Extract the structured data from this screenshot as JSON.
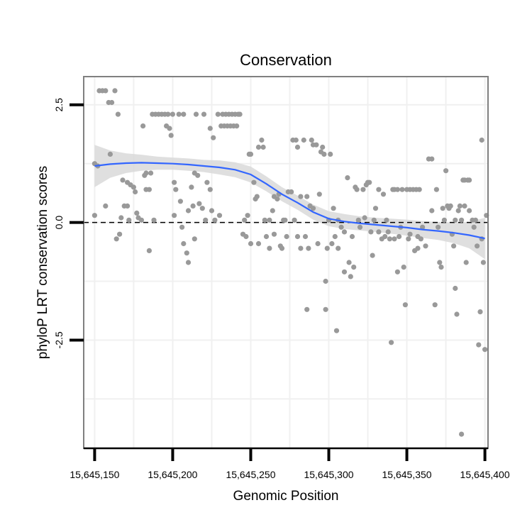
{
  "chart_data": {
    "type": "scatter",
    "title": "Conservation",
    "xlabel": "Genomic Position",
    "ylabel": "phyloP LRT conservation scores",
    "xlim": [
      15645143,
      15645402
    ],
    "ylim": [
      -4.8,
      3.1
    ],
    "x_ticks": [
      15645150,
      15645200,
      15645250,
      15645300,
      15645350,
      15645400
    ],
    "x_tick_labels": [
      "15,645,150",
      "15,645,200",
      "15,645,250",
      "15,645,300",
      "15,645,350",
      "15,645,400"
    ],
    "y_ticks": [
      2.5,
      0.0,
      -2.5
    ],
    "y_tick_labels": [
      "2.5",
      "0.0",
      "-2.5"
    ],
    "reference_line": {
      "y": 0,
      "style": "dashed"
    },
    "points": [
      [
        15645150,
        1.25
      ],
      [
        15645152,
        1.2
      ],
      [
        15645150,
        0.15
      ],
      [
        15645153,
        2.8
      ],
      [
        15645155,
        2.8
      ],
      [
        15645157,
        2.8
      ],
      [
        15645159,
        2.55
      ],
      [
        15645161,
        2.55
      ],
      [
        15645163,
        2.8
      ],
      [
        15645165,
        2.3
      ],
      [
        15645157,
        0.35
      ],
      [
        15645160,
        1.45
      ],
      [
        15645164,
        -0.35
      ],
      [
        15645166,
        -0.25
      ],
      [
        15645167,
        0.1
      ],
      [
        15645168,
        0.9
      ],
      [
        15645169,
        0.35
      ],
      [
        15645171,
        0.35
      ],
      [
        15645171,
        0.85
      ],
      [
        15645173,
        0.8
      ],
      [
        15645172,
        0.05
      ],
      [
        15645175,
        0.75
      ],
      [
        15645176,
        0.65
      ],
      [
        15645177,
        0.2
      ],
      [
        15645178,
        0.1
      ],
      [
        15645180,
        0.05
      ],
      [
        15645181,
        2.05
      ],
      [
        15645182,
        1.0
      ],
      [
        15645183,
        1.05
      ],
      [
        15645183,
        0.7
      ],
      [
        15645185,
        0.7
      ],
      [
        15645185,
        -0.6
      ],
      [
        15645186,
        1.05
      ],
      [
        15645188,
        0.05
      ],
      [
        15645187,
        2.3
      ],
      [
        15645189,
        2.3
      ],
      [
        15645191,
        2.3
      ],
      [
        15645193,
        2.3
      ],
      [
        15645195,
        2.3
      ],
      [
        15645196,
        2.05
      ],
      [
        15645197,
        2.3
      ],
      [
        15645198,
        2.0
      ],
      [
        15645199,
        1.85
      ],
      [
        15645200,
        2.3
      ],
      [
        15645201,
        0.15
      ],
      [
        15645201,
        0.85
      ],
      [
        15645202,
        0.7
      ],
      [
        15645204,
        2.3
      ],
      [
        15645205,
        0.45
      ],
      [
        15645206,
        -0.1
      ],
      [
        15645207,
        2.3
      ],
      [
        15645207,
        -0.45
      ],
      [
        15645209,
        -0.65
      ],
      [
        15645210,
        -0.85
      ],
      [
        15645210,
        0.25
      ],
      [
        15645212,
        0.75
      ],
      [
        15645213,
        0.35
      ],
      [
        15645214,
        1.05
      ],
      [
        15645214,
        -0.35
      ],
      [
        15645215,
        2.3
      ],
      [
        15645216,
        1.0
      ],
      [
        15645217,
        0.4
      ],
      [
        15645219,
        0.3
      ],
      [
        15645220,
        2.3
      ],
      [
        15645221,
        0.05
      ],
      [
        15645222,
        0.85
      ],
      [
        15645224,
        0.7
      ],
      [
        15645225,
        0.25
      ],
      [
        15645224,
        2.0
      ],
      [
        15645226,
        1.8
      ],
      [
        15645227,
        0.05
      ],
      [
        15645229,
        2.3
      ],
      [
        15645230,
        0.15
      ],
      [
        15645231,
        2.05
      ],
      [
        15645232,
        2.3
      ],
      [
        15645233,
        2.05
      ],
      [
        15645234,
        2.3
      ],
      [
        15645235,
        2.05
      ],
      [
        15645236,
        2.3
      ],
      [
        15645237,
        2.05
      ],
      [
        15645238,
        2.3
      ],
      [
        15645239,
        2.05
      ],
      [
        15645240,
        2.3
      ],
      [
        15645241,
        2.05
      ],
      [
        15645242,
        2.3
      ],
      [
        15645243,
        2.3
      ],
      [
        15645245,
        -0.25
      ],
      [
        15645246,
        0.05
      ],
      [
        15645247,
        -0.3
      ],
      [
        15645248,
        0.15
      ],
      [
        15645249,
        1.45
      ],
      [
        15645250,
        1.45
      ],
      [
        15645250,
        -0.45
      ],
      [
        15645252,
        0.85
      ],
      [
        15645253,
        0.5
      ],
      [
        15645254,
        0.55
      ],
      [
        15645255,
        -0.45
      ],
      [
        15645255,
        1.6
      ],
      [
        15645257,
        1.75
      ],
      [
        15645258,
        1.6
      ],
      [
        15645259,
        0.05
      ],
      [
        15645260,
        -0.3
      ],
      [
        15645262,
        0.05
      ],
      [
        15645262,
        -0.55
      ],
      [
        15645264,
        0.25
      ],
      [
        15645265,
        0.55
      ],
      [
        15645265,
        -0.25
      ],
      [
        15645267,
        0.5
      ],
      [
        15645268,
        0.6
      ],
      [
        15645269,
        -0.5
      ],
      [
        15645270,
        -0.55
      ],
      [
        15645271,
        0.05
      ],
      [
        15645272,
        0.05
      ],
      [
        15645273,
        -0.3
      ],
      [
        15645274,
        0.65
      ],
      [
        15645276,
        0.65
      ],
      [
        15645277,
        1.75
      ],
      [
        15645278,
        0.05
      ],
      [
        15645279,
        1.75
      ],
      [
        15645280,
        1.6
      ],
      [
        15645280,
        -0.3
      ],
      [
        15645282,
        0.55
      ],
      [
        15645282,
        -0.55
      ],
      [
        15645284,
        1.75
      ],
      [
        15645285,
        -0.3
      ],
      [
        15645286,
        -1.85
      ],
      [
        15645286,
        0.55
      ],
      [
        15645287,
        -0.55
      ],
      [
        15645288,
        0.35
      ],
      [
        15645289,
        1.75
      ],
      [
        15645290,
        1.65
      ],
      [
        15645290,
        0.3
      ],
      [
        15645292,
        1.65
      ],
      [
        15645293,
        -0.45
      ],
      [
        15645294,
        0.6
      ],
      [
        15645295,
        1.5
      ],
      [
        15645296,
        1.6
      ],
      [
        15645297,
        1.45
      ],
      [
        15645298,
        -1.25
      ],
      [
        15645298,
        -1.85
      ],
      [
        15645299,
        -0.55
      ],
      [
        15645300,
        0.05
      ],
      [
        15645301,
        1.45
      ],
      [
        15645302,
        -0.45
      ],
      [
        15645303,
        0.3
      ],
      [
        15645304,
        -0.3
      ],
      [
        15645305,
        -2.3
      ],
      [
        15645306,
        0.05
      ],
      [
        15645306,
        -0.55
      ],
      [
        15645308,
        -0.1
      ],
      [
        15645310,
        -1.05
      ],
      [
        15645310,
        -0.2
      ],
      [
        15645312,
        0.95
      ],
      [
        15645313,
        -0.85
      ],
      [
        15645314,
        -1.15
      ],
      [
        15645315,
        -0.3
      ],
      [
        15645316,
        -0.95
      ],
      [
        15645317,
        0.75
      ],
      [
        15645318,
        0.7
      ],
      [
        15645319,
        0.05
      ],
      [
        15645320,
        -0.1
      ],
      [
        15645322,
        0.7
      ],
      [
        15645323,
        0.1
      ],
      [
        15645324,
        0.8
      ],
      [
        15645325,
        0.85
      ],
      [
        15645326,
        0.85
      ],
      [
        15645327,
        -0.2
      ],
      [
        15645328,
        -0.7
      ],
      [
        15645329,
        0.05
      ],
      [
        15645330,
        0.3
      ],
      [
        15645332,
        0.7
      ],
      [
        15645332,
        -0.2
      ],
      [
        15645334,
        -0.35
      ],
      [
        15645335,
        0.6
      ],
      [
        15645336,
        -0.3
      ],
      [
        15645337,
        0.05
      ],
      [
        15645338,
        -0.2
      ],
      [
        15645339,
        -0.35
      ],
      [
        15645340,
        -2.55
      ],
      [
        15645341,
        0.7
      ],
      [
        15645342,
        0.7
      ],
      [
        15645342,
        -0.35
      ],
      [
        15645344,
        0.7
      ],
      [
        15645344,
        -1.05
      ],
      [
        15645345,
        -0.3
      ],
      [
        15645346,
        -0.1
      ],
      [
        15645347,
        0.7
      ],
      [
        15645348,
        -0.95
      ],
      [
        15645349,
        -1.75
      ],
      [
        15645350,
        0.7
      ],
      [
        15645351,
        -0.35
      ],
      [
        15645352,
        0.7
      ],
      [
        15645352,
        -0.25
      ],
      [
        15645354,
        0.7
      ],
      [
        15645355,
        -0.6
      ],
      [
        15645356,
        0.7
      ],
      [
        15645357,
        -0.3
      ],
      [
        15645357,
        -0.55
      ],
      [
        15645358,
        0.7
      ],
      [
        15645359,
        -0.35
      ],
      [
        15645360,
        -0.1
      ],
      [
        15645362,
        -0.5
      ],
      [
        15645364,
        1.35
      ],
      [
        15645366,
        1.35
      ],
      [
        15645366,
        0.25
      ],
      [
        15645368,
        -1.75
      ],
      [
        15645369,
        0.7
      ],
      [
        15645370,
        -0.1
      ],
      [
        15645371,
        -0.85
      ],
      [
        15645372,
        -0.95
      ],
      [
        15645373,
        0.3
      ],
      [
        15645374,
        0.05
      ],
      [
        15645375,
        1.1
      ],
      [
        15645376,
        0.35
      ],
      [
        15645377,
        0.3
      ],
      [
        15645378,
        0.35
      ],
      [
        15645379,
        -0.25
      ],
      [
        15645380,
        -0.5
      ],
      [
        15645381,
        -1.4
      ],
      [
        15645381,
        0.05
      ],
      [
        15645382,
        -1.95
      ],
      [
        15645383,
        0.25
      ],
      [
        15645384,
        0.35
      ],
      [
        15645385,
        -4.5
      ],
      [
        15645385,
        0.05
      ],
      [
        15645386,
        0.9
      ],
      [
        15645387,
        0.9
      ],
      [
        15645387,
        0.35
      ],
      [
        15645388,
        -0.85
      ],
      [
        15645389,
        0.9
      ],
      [
        15645390,
        0.9
      ],
      [
        15645390,
        0.25
      ],
      [
        15645392,
        0.05
      ],
      [
        15645393,
        -0.1
      ],
      [
        15645394,
        0.05
      ],
      [
        15645395,
        -0.5
      ],
      [
        15645396,
        -2.6
      ],
      [
        15645397,
        -1.9
      ],
      [
        15645398,
        1.75
      ],
      [
        15645398,
        -0.35
      ],
      [
        15645399,
        -0.85
      ],
      [
        15645400,
        -2.7
      ],
      [
        15645401,
        0.15
      ]
    ],
    "smooth": {
      "method": "loess",
      "x": [
        15645150,
        15645160,
        15645170,
        15645180,
        15645190,
        15645200,
        15645210,
        15645220,
        15645230,
        15645240,
        15645250,
        15645260,
        15645270,
        15645280,
        15645290,
        15645300,
        15645310,
        15645320,
        15645330,
        15645340,
        15645350,
        15645360,
        15645370,
        15645380,
        15645390,
        15645400
      ],
      "y": [
        1.2,
        1.24,
        1.26,
        1.27,
        1.26,
        1.25,
        1.23,
        1.2,
        1.17,
        1.12,
        1.02,
        0.82,
        0.6,
        0.42,
        0.22,
        0.08,
        0.02,
        -0.02,
        -0.05,
        -0.08,
        -0.11,
        -0.15,
        -0.18,
        -0.22,
        -0.27,
        -0.34
      ],
      "lower": [
        0.75,
        0.95,
        1.05,
        1.1,
        1.12,
        1.12,
        1.1,
        1.07,
        1.02,
        0.96,
        0.85,
        0.66,
        0.45,
        0.27,
        0.06,
        -0.08,
        -0.14,
        -0.17,
        -0.2,
        -0.24,
        -0.28,
        -0.33,
        -0.37,
        -0.44,
        -0.55,
        -0.78
      ],
      "upper": [
        1.65,
        1.53,
        1.47,
        1.44,
        1.4,
        1.38,
        1.36,
        1.33,
        1.32,
        1.28,
        1.19,
        0.98,
        0.75,
        0.57,
        0.38,
        0.24,
        0.18,
        0.13,
        0.1,
        0.08,
        0.06,
        0.03,
        0.01,
        0,
        0.01,
        0.1
      ]
    },
    "colors": {
      "points": "#999999",
      "smooth_line": "#3366ff",
      "ribbon": "#d9d9d9",
      "panel_border": "#808080",
      "grid": "#f0f0f0",
      "reference_line": "#000000"
    }
  }
}
